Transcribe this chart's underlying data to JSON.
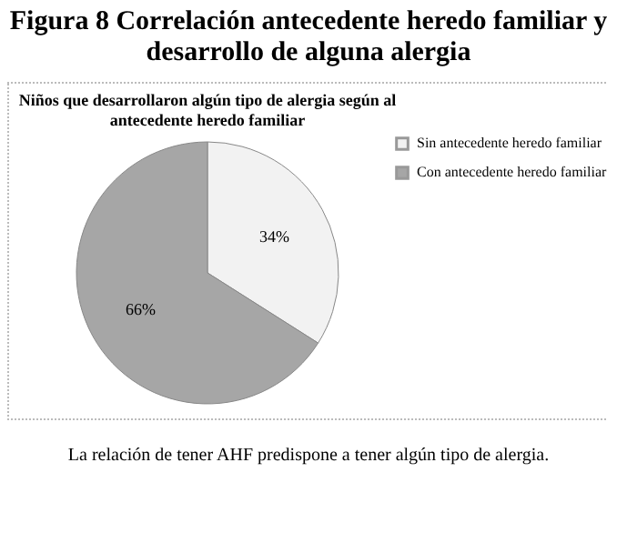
{
  "chart_data": {
    "type": "pie",
    "title": "Figura 8 Correlación antecedente heredo familiar y desarrollo de alguna alergia",
    "subtitle": [
      "Niños que desarrollaron algún tipo de alergia según al",
      "antecedente heredo familiar"
    ],
    "categories": [
      "Sin antecedente heredo familiar",
      "Con antecedente heredo familiar"
    ],
    "values": [
      34,
      66
    ],
    "colors": [
      "#f2f2f2",
      "#a6a6a6"
    ],
    "value_labels": [
      "34%",
      "66%"
    ],
    "legend": "right",
    "annotations": [
      "La relación de tener AHF predispone a tener algún tipo de alergia."
    ]
  }
}
